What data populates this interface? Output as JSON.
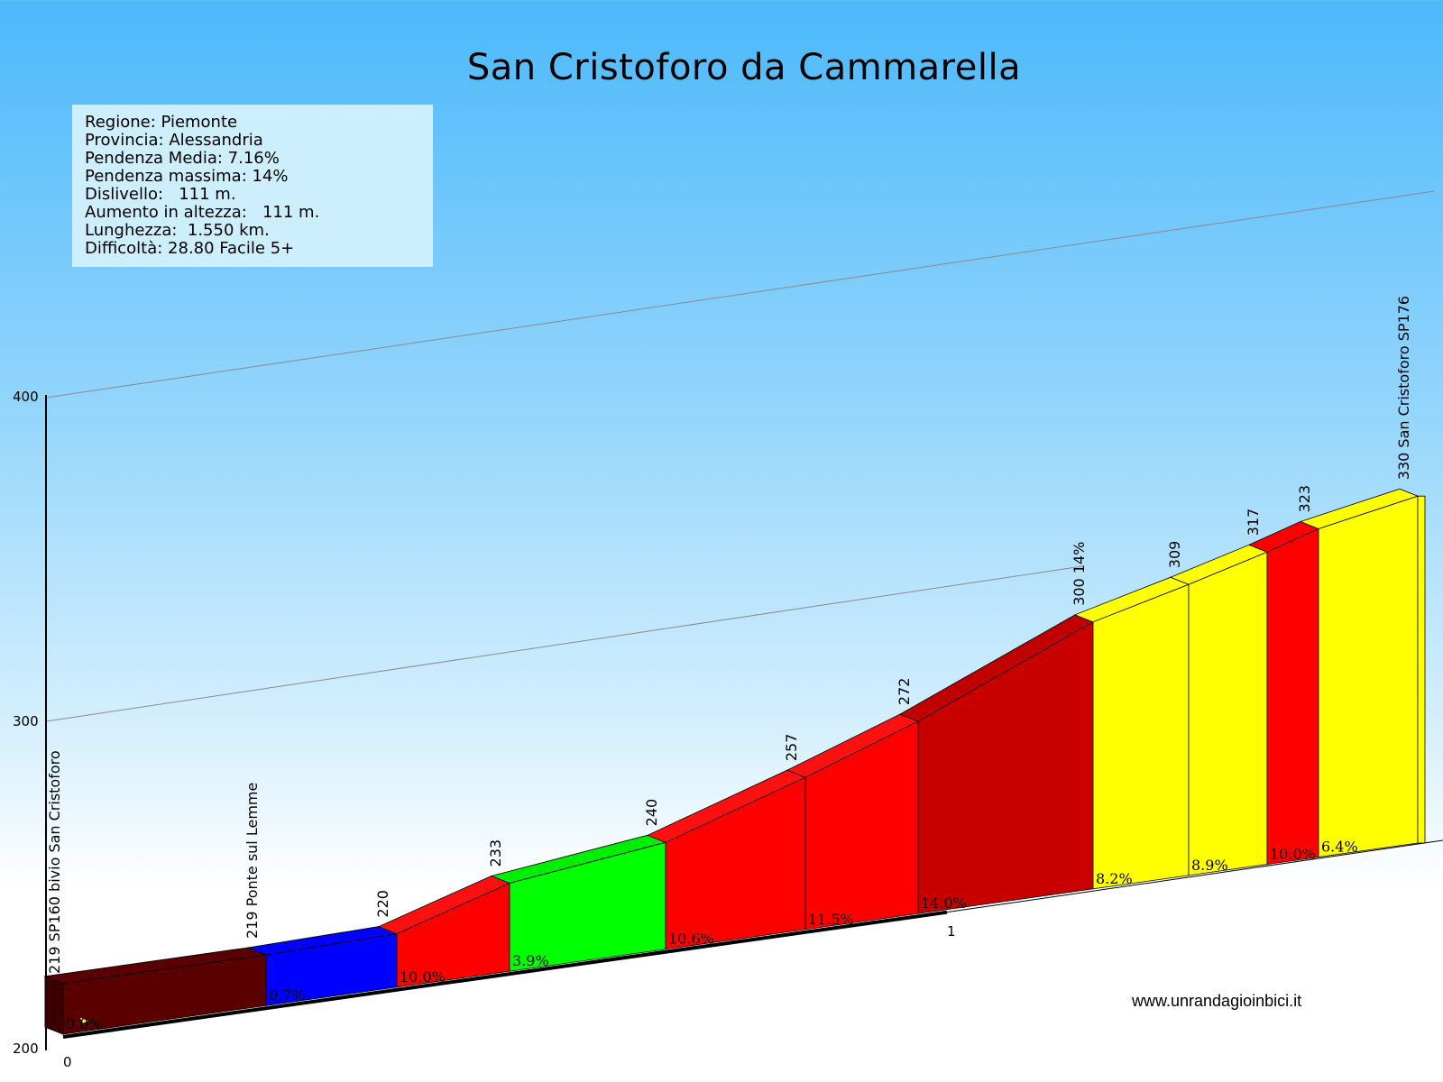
{
  "chart_data": {
    "type": "area",
    "title": "San Cristoforo da Cammarella",
    "info": [
      "Regione: Piemonte",
      "Provincia: Alessandria",
      "Pendenza Media: 7.16%",
      "Pendenza massima: 14%",
      "Dislivello:   111 m.",
      "Aumento in altezza:   111 m.",
      "Lunghezza:  1.550 km.",
      "Difficoltà: 28.80 Facile 5+"
    ],
    "y_ticks": [
      "200",
      "300",
      "400"
    ],
    "ylim": [
      200,
      400
    ],
    "x_ticks": [
      "0",
      "1"
    ],
    "website": "www.unrandagioinbici.it",
    "segments": [
      {
        "grade": "0.0%",
        "color": "#5a0000",
        "top": "#5a0000"
      },
      {
        "grade": "0.7%",
        "color": "#0000ff",
        "top": "#0000ff"
      },
      {
        "grade": "10.0%",
        "color": "#ff0000",
        "top": "#ff1010"
      },
      {
        "grade": "3.9%",
        "color": "#00ff00",
        "top": "#00ee00"
      },
      {
        "grade": "10.6%",
        "color": "#ff0000",
        "top": "#ff1010"
      },
      {
        "grade": "11.5%",
        "color": "#ff0000",
        "top": "#ff1010"
      },
      {
        "grade": "14.0%",
        "color": "#c80000",
        "top": "#c00000"
      },
      {
        "grade": "8.2%",
        "color": "#ffff00",
        "top": "#ffff00"
      },
      {
        "grade": "8.9%",
        "color": "#ffff00",
        "top": "#ffff00"
      },
      {
        "grade": "10.0%",
        "color": "#ff0000",
        "top": "#ff0000"
      },
      {
        "grade": "6.4%",
        "color": "#ffff00",
        "top": "#ffff00"
      }
    ],
    "points": [
      {
        "altitude": 219,
        "label": "219 SP160 bivio San Cristoforo"
      },
      {
        "altitude": 219,
        "label": "219 Ponte sul Lemme"
      },
      {
        "altitude": 220,
        "label": "220"
      },
      {
        "altitude": 233,
        "label": "233"
      },
      {
        "altitude": 240,
        "label": "240"
      },
      {
        "altitude": 257,
        "label": "257"
      },
      {
        "altitude": 272,
        "label": "272"
      },
      {
        "altitude": 300,
        "label": "300 14%"
      },
      {
        "altitude": 309,
        "label": "309"
      },
      {
        "altitude": 317,
        "label": "317"
      },
      {
        "altitude": 323,
        "label": "323"
      },
      {
        "altitude": 330,
        "label": "330 San Cristoforo SP176"
      }
    ]
  }
}
